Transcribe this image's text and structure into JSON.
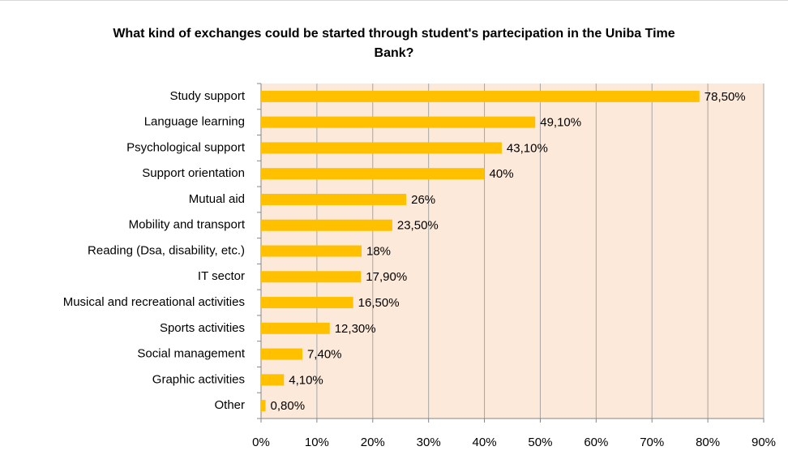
{
  "chart_data": {
    "type": "bar",
    "orientation": "horizontal",
    "title": "What kind of exchanges could be started through student's partecipation in the Uniba Time Bank?",
    "categories": [
      "Study support",
      "Language learning",
      "Psychological support",
      "Support orientation",
      "Mutual aid",
      "Mobility and transport",
      "Reading (Dsa, disability, etc.)",
      "IT sector",
      "Musical and recreational activities",
      "Sports activities",
      "Social management",
      "Graphic activities",
      "Other"
    ],
    "values": [
      78.5,
      49.1,
      43.1,
      40,
      26,
      23.5,
      18,
      17.9,
      16.5,
      12.3,
      7.4,
      4.1,
      0.8
    ],
    "value_labels": [
      "78,50%",
      "49,10%",
      "43,10%",
      "40%",
      "26%",
      "23,50%",
      "18%",
      "17,90%",
      "16,50%",
      "12,30%",
      "7,40%",
      "4,10%",
      "0,80%"
    ],
    "color": "#ffc000",
    "xlim": [
      0,
      90
    ],
    "xticks": [
      {
        "value": 0,
        "label": "0%"
      },
      {
        "value": 10,
        "label": "10%"
      },
      {
        "value": 20,
        "label": "20%"
      },
      {
        "value": 30,
        "label": "30%"
      },
      {
        "value": 40,
        "label": "40%"
      },
      {
        "value": 50,
        "label": "50%"
      },
      {
        "value": 60,
        "label": "60%"
      },
      {
        "value": 70,
        "label": "70%"
      },
      {
        "value": 80,
        "label": "80%"
      },
      {
        "value": 90,
        "label": "90%"
      }
    ],
    "grid": true
  }
}
